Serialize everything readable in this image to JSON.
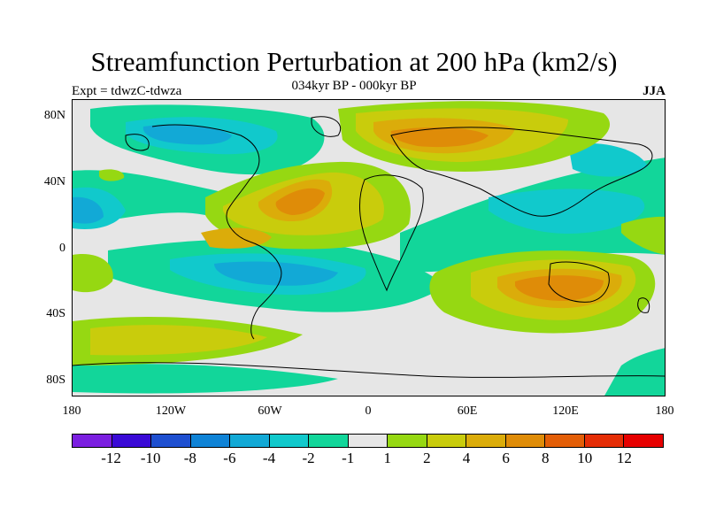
{
  "title": "Streamfunction Perturbation at 200 hPa (km2/s)",
  "subtitle": "034kyr BP - 000kyr BP",
  "left_label": "Expt = tdwzC-tdwza",
  "right_label": "JJA",
  "lat_ticks": [
    "80N",
    "40N",
    "0",
    "40S",
    "80S"
  ],
  "lon_ticks": [
    "180",
    "120W",
    "60W",
    "0",
    "60E",
    "120E",
    "180"
  ],
  "colorbar": {
    "colors": [
      "#7b1fe0",
      "#3a0ad6",
      "#1e4fd0",
      "#0f83d6",
      "#12a9d6",
      "#11c9cc",
      "#12d69a",
      "#e6e6e6",
      "#96d812",
      "#c9cc0c",
      "#dbac0a",
      "#df8c08",
      "#e35e07",
      "#e52d06",
      "#e60000"
    ],
    "labels": [
      "-12",
      "-10",
      "-8",
      "-6",
      "-4",
      "-2",
      "-1",
      "1",
      "2",
      "4",
      "6",
      "8",
      "10",
      "12"
    ]
  },
  "field": {
    "type": "filled-contour",
    "variable": "Streamfunction Perturbation at 200 hPa",
    "units": "km2/s",
    "season": "JJA"
  }
}
